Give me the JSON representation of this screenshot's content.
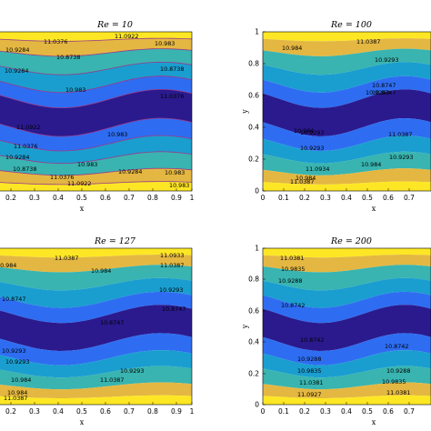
{
  "colors": {
    "levels": [
      "#fde725",
      "#e4b742",
      "#39b4b0",
      "#1a9ed0",
      "#2e6df1",
      "#3b2fc8",
      "#2a1a8e"
    ],
    "contour_line": "#9a3a8a"
  },
  "chart_data": [
    {
      "type": "contour",
      "title": "Re = 10",
      "xlabel": "x",
      "ylabel": "",
      "xlim": [
        0,
        1
      ],
      "ylim": [
        0,
        1
      ],
      "xticks": [
        "0.2",
        "0.3",
        "0.4",
        "0.5",
        "0.6",
        "0.7",
        "0.8",
        "0.9",
        "1"
      ],
      "yticks": [],
      "contour_labels": [
        "11.0922",
        "11.0376",
        "10.983",
        "10.9284",
        "10.8738",
        "10.8738",
        "10.9284",
        "10.983",
        "11.0376",
        "11.0922",
        "10.983",
        "11.0376",
        "10.9284",
        "10.983",
        "10.8738",
        "10.9284",
        "10.983",
        "11.0376",
        "11.0922",
        "10.983"
      ]
    },
    {
      "type": "contour",
      "title": "Re = 100",
      "xlabel": "x",
      "ylabel": "y",
      "xlim": [
        0,
        1
      ],
      "ylim": [
        0,
        1
      ],
      "xticks": [
        "0",
        "0.1",
        "0.2",
        "0.3",
        "0.4",
        "0.5",
        "0.6",
        "0.7"
      ],
      "yticks": [
        "0",
        "0.2",
        "0.4",
        "0.6",
        "0.8",
        "1"
      ],
      "contour_labels": [
        "11.0387",
        "10.984",
        "10.9293",
        "10.8747",
        "10.9293",
        "10.984",
        "11.0387",
        "11.0934",
        "10.8747",
        "10.9293",
        "10.984",
        "10.9293",
        "11.0387",
        "10.984",
        "10.9293"
      ]
    },
    {
      "type": "contour",
      "title": "Re = 127",
      "xlabel": "x",
      "ylabel": "",
      "xlim": [
        0,
        1
      ],
      "ylim": [
        0,
        1
      ],
      "xticks": [
        "0.2",
        "0.3",
        "0.4",
        "0.5",
        "0.6",
        "0.7",
        "0.8",
        "0.9",
        "1"
      ],
      "yticks": [],
      "contour_labels": [
        "11.0387",
        "10.984",
        "11.0933",
        "11.0387",
        "10.984",
        "10.9293",
        "10.8747",
        "10.8747",
        "10.9293",
        "10.8747",
        "10.9293",
        "10.984",
        "10.9293",
        "11.0387",
        "10.984",
        "11.0387"
      ]
    },
    {
      "type": "contour",
      "title": "Re = 200",
      "xlabel": "x",
      "ylabel": "y",
      "xlim": [
        0,
        1
      ],
      "ylim": [
        0,
        1
      ],
      "xticks": [
        "0",
        "0.1",
        "0.2",
        "0.3",
        "0.4",
        "0.5",
        "0.6",
        "0.7"
      ],
      "yticks": [
        "0",
        "0.2",
        "0.4",
        "0.6",
        "0.8",
        "1"
      ],
      "contour_labels": [
        "11.0381",
        "10.9835",
        "10.9288",
        "10.8742",
        "10.8742",
        "10.8742",
        "10.9288",
        "10.9835",
        "11.0381",
        "11.0927",
        "10.9288",
        "10.9835",
        "11.0381"
      ]
    }
  ]
}
